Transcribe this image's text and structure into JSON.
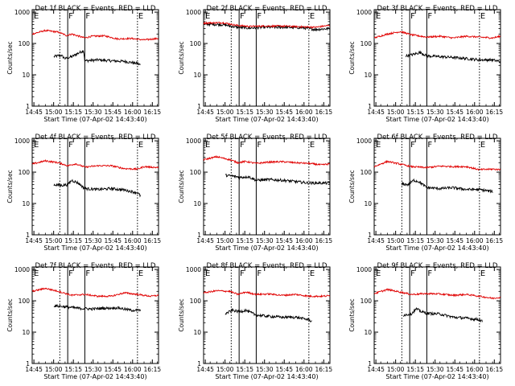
{
  "colors": {
    "events": "#000000",
    "lld": "#e00000",
    "axes": "#000000",
    "background": "#ffffff"
  },
  "common": {
    "xlabel": "Start Time (07-Apr-02 14:43:40)",
    "ylabel": "Counts/sec",
    "x_ticks": [
      "14:45",
      "15:00",
      "15:15",
      "15:30",
      "15:45",
      "16:00",
      "16:15"
    ],
    "y_ticks": [
      "1",
      "10",
      "100",
      "1000"
    ],
    "markers": [
      "E",
      "F",
      "F",
      "E"
    ]
  },
  "chart_data": [
    {
      "type": "line",
      "title": "Det 1f BLACK = Events, RED = LLD",
      "x_range_min": [
        0,
        96
      ],
      "ylim": [
        1,
        1200
      ],
      "x_ticks_min": [
        1.3,
        16.3,
        31.3,
        46.3,
        61.3,
        76.3,
        91.3
      ],
      "events_window_min": [
        16.5,
        82.5
      ],
      "flare_lines_min": [
        27,
        40
      ],
      "event_lines_min": [
        21,
        80
      ],
      "series": [
        {
          "name": "Events",
          "color": "#000000",
          "x_min": [
            16,
            22,
            25,
            30,
            39,
            40,
            50,
            60,
            70,
            80,
            82
          ],
          "values": [
            38,
            42,
            33,
            38,
            60,
            28,
            30,
            28,
            27,
            23,
            21
          ]
        },
        {
          "name": "LLD",
          "color": "#e00000",
          "x_min": [
            0,
            10,
            20,
            26,
            30,
            40,
            45,
            55,
            65,
            75,
            85,
            96
          ],
          "values": [
            200,
            260,
            230,
            180,
            200,
            150,
            170,
            175,
            140,
            145,
            130,
            145
          ]
        }
      ]
    },
    {
      "type": "line",
      "title": "Det 2f BLACK = Events, RED = LLD",
      "x_range_min": [
        0,
        96
      ],
      "ylim": [
        1,
        1200
      ],
      "x_ticks_min": [
        1.3,
        16.3,
        31.3,
        46.3,
        61.3,
        76.3,
        91.3
      ],
      "events_window_min": [
        0,
        96
      ],
      "flare_lines_min": [
        27,
        40
      ],
      "event_lines_min": [
        21,
        80
      ],
      "series": [
        {
          "name": "Events",
          "color": "#000000",
          "x_min": [
            0,
            15,
            25,
            35,
            45,
            60,
            75,
            85,
            96
          ],
          "values": [
            420,
            400,
            330,
            310,
            330,
            330,
            320,
            280,
            300
          ]
        },
        {
          "name": "LLD",
          "color": "#e00000",
          "x_min": [
            0,
            15,
            25,
            35,
            45,
            60,
            75,
            85,
            96
          ],
          "values": [
            450,
            460,
            380,
            350,
            360,
            360,
            340,
            330,
            380
          ]
        }
      ]
    },
    {
      "type": "line",
      "title": "Det 3f BLACK = Events, RED = LLD",
      "x_range_min": [
        0,
        96
      ],
      "ylim": [
        1,
        1200
      ],
      "x_ticks_min": [
        1.3,
        16.3,
        31.3,
        46.3,
        61.3,
        76.3,
        91.3
      ],
      "events_window_min": [
        24,
        96
      ],
      "flare_lines_min": [
        27,
        40
      ],
      "event_lines_min": [
        21,
        80
      ],
      "series": [
        {
          "name": "Events",
          "color": "#000000",
          "x_min": [
            24,
            30,
            35,
            40,
            50,
            60,
            70,
            80,
            90,
            96
          ],
          "values": [
            40,
            45,
            52,
            40,
            38,
            36,
            33,
            30,
            30,
            26
          ]
        },
        {
          "name": "LLD",
          "color": "#e00000",
          "x_min": [
            0,
            10,
            20,
            28,
            40,
            50,
            60,
            70,
            80,
            90,
            96
          ],
          "values": [
            150,
            200,
            240,
            190,
            160,
            170,
            150,
            170,
            160,
            150,
            170
          ]
        }
      ]
    },
    {
      "type": "line",
      "title": "Det 4f BLACK = Events, RED = LLD",
      "x_range_min": [
        0,
        96
      ],
      "ylim": [
        1,
        1200
      ],
      "x_ticks_min": [
        1.3,
        16.3,
        31.3,
        46.3,
        61.3,
        76.3,
        91.3
      ],
      "events_window_min": [
        16.5,
        82.5
      ],
      "flare_lines_min": [
        27,
        40
      ],
      "event_lines_min": [
        21,
        80
      ],
      "series": [
        {
          "name": "Events",
          "color": "#000000",
          "x_min": [
            16,
            22,
            27,
            30,
            35,
            40,
            50,
            60,
            70,
            80,
            82
          ],
          "values": [
            40,
            38,
            40,
            55,
            45,
            30,
            28,
            30,
            27,
            22,
            18
          ]
        },
        {
          "name": "LLD",
          "color": "#e00000",
          "x_min": [
            0,
            10,
            20,
            27,
            33,
            40,
            50,
            60,
            70,
            80,
            85,
            96
          ],
          "values": [
            180,
            230,
            200,
            160,
            185,
            145,
            160,
            160,
            130,
            125,
            150,
            140
          ]
        }
      ]
    },
    {
      "type": "line",
      "title": "Det 5f BLACK = Events, RED = LLD",
      "x_range_min": [
        0,
        96
      ],
      "ylim": [
        1,
        1200
      ],
      "x_ticks_min": [
        1.3,
        16.3,
        31.3,
        46.3,
        61.3,
        76.3,
        91.3
      ],
      "events_window_min": [
        16.5,
        96
      ],
      "flare_lines_min": [
        27,
        40
      ],
      "event_lines_min": [
        21,
        80
      ],
      "series": [
        {
          "name": "Events",
          "color": "#000000",
          "x_min": [
            16,
            22,
            28,
            34,
            40,
            50,
            60,
            70,
            80,
            90
          ],
          "values": [
            80,
            75,
            68,
            72,
            55,
            58,
            55,
            50,
            45,
            45
          ]
        },
        {
          "name": "LLD",
          "color": "#e00000",
          "x_min": [
            0,
            10,
            20,
            26,
            32,
            40,
            50,
            60,
            70,
            80,
            90,
            96
          ],
          "values": [
            250,
            310,
            250,
            200,
            220,
            190,
            210,
            215,
            200,
            190,
            170,
            185
          ]
        }
      ]
    },
    {
      "type": "line",
      "title": "Det 6f BLACK = Events, RED = LLD",
      "x_range_min": [
        0,
        96
      ],
      "ylim": [
        1,
        1200
      ],
      "x_ticks_min": [
        1.3,
        16.3,
        31.3,
        46.3,
        61.3,
        76.3,
        91.3
      ],
      "events_window_min": [
        21,
        90
      ],
      "flare_lines_min": [
        27,
        40
      ],
      "event_lines_min": [
        21,
        80
      ],
      "series": [
        {
          "name": "Events",
          "color": "#000000",
          "x_min": [
            21,
            26,
            30,
            34,
            40,
            50,
            60,
            70,
            80,
            90
          ],
          "values": [
            42,
            40,
            55,
            50,
            32,
            30,
            32,
            28,
            28,
            24
          ]
        },
        {
          "name": "LLD",
          "color": "#e00000",
          "x_min": [
            0,
            10,
            20,
            28,
            40,
            50,
            60,
            70,
            80,
            90,
            96
          ],
          "values": [
            150,
            220,
            180,
            150,
            140,
            155,
            150,
            150,
            120,
            125,
            120
          ]
        }
      ]
    },
    {
      "type": "line",
      "title": "Det 7f BLACK = Events, RED = LLD",
      "x_range_min": [
        0,
        96
      ],
      "ylim": [
        1,
        1200
      ],
      "x_ticks_min": [
        1.3,
        16.3,
        31.3,
        46.3,
        61.3,
        76.3,
        91.3
      ],
      "events_window_min": [
        16.5,
        82.5
      ],
      "flare_lines_min": [
        27,
        40
      ],
      "event_lines_min": [
        21,
        80
      ],
      "series": [
        {
          "name": "Events",
          "color": "#000000",
          "x_min": [
            16,
            25,
            35,
            45,
            55,
            65,
            75,
            82
          ],
          "values": [
            70,
            65,
            58,
            55,
            58,
            60,
            50,
            50
          ]
        },
        {
          "name": "LLD",
          "color": "#e00000",
          "x_min": [
            0,
            10,
            20,
            30,
            40,
            50,
            60,
            70,
            80,
            90,
            96
          ],
          "values": [
            200,
            250,
            200,
            150,
            160,
            140,
            140,
            180,
            160,
            140,
            150
          ]
        }
      ]
    },
    {
      "type": "line",
      "title": "Det 8f BLACK = Events, RED = LLD",
      "x_range_min": [
        0,
        96
      ],
      "ylim": [
        1,
        1200
      ],
      "x_ticks_min": [
        1.3,
        16.3,
        31.3,
        46.3,
        61.3,
        76.3,
        91.3
      ],
      "events_window_min": [
        16.5,
        82.5
      ],
      "flare_lines_min": [
        27,
        40
      ],
      "event_lines_min": [
        21,
        80
      ],
      "series": [
        {
          "name": "Events",
          "color": "#000000",
          "x_min": [
            16,
            22,
            27,
            32,
            40,
            50,
            60,
            70,
            80,
            82
          ],
          "values": [
            38,
            50,
            45,
            50,
            35,
            32,
            30,
            30,
            25,
            22
          ]
        },
        {
          "name": "LLD",
          "color": "#e00000",
          "x_min": [
            0,
            10,
            20,
            26,
            32,
            40,
            50,
            60,
            70,
            80,
            90,
            96
          ],
          "values": [
            180,
            210,
            200,
            160,
            190,
            160,
            165,
            150,
            160,
            140,
            140,
            145
          ]
        }
      ]
    },
    {
      "type": "line",
      "title": "Det 9f BLACK = Events, RED = LLD",
      "x_range_min": [
        0,
        96
      ],
      "ylim": [
        1,
        1200
      ],
      "x_ticks_min": [
        1.3,
        16.3,
        31.3,
        46.3,
        61.3,
        76.3,
        91.3
      ],
      "events_window_min": [
        22,
        82.5
      ],
      "flare_lines_min": [
        27,
        40
      ],
      "event_lines_min": [
        21,
        80
      ],
      "series": [
        {
          "name": "Events",
          "color": "#000000",
          "x_min": [
            22,
            28,
            32,
            36,
            40,
            50,
            60,
            70,
            80,
            82
          ],
          "values": [
            35,
            38,
            55,
            45,
            40,
            38,
            30,
            28,
            25,
            22
          ]
        },
        {
          "name": "LLD",
          "color": "#e00000",
          "x_min": [
            0,
            10,
            20,
            28,
            40,
            50,
            60,
            70,
            80,
            90,
            96
          ],
          "values": [
            170,
            230,
            190,
            160,
            170,
            165,
            150,
            160,
            140,
            120,
            130
          ]
        }
      ]
    }
  ]
}
